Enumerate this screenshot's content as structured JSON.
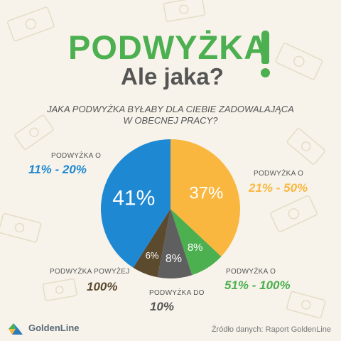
{
  "header": {
    "title": "PODWYŻKA",
    "subtitle": "Ale jaka?",
    "question_line1": "JAKA PODWYŻKA BYŁABY DLA CIEBIE ZADOWALAJĄCA",
    "question_line2": "W OBECNEJ PRACY?"
  },
  "labels": [
    {
      "id": "11-20",
      "small": "PODWYŻKA O",
      "range": "11% - 20%",
      "color": "#1e88d2"
    },
    {
      "id": "21-50",
      "small": "PODWYŻKA O",
      "range": "21% - 50%",
      "color": "#f9b73f"
    },
    {
      "id": "51-100",
      "small": "PODWYŻKA O",
      "range": "51% - 100%",
      "color": "#4caf50"
    },
    {
      "id": "do10",
      "small": "PODWYŻKA DO",
      "range": "10%",
      "color": "#555555"
    },
    {
      "id": "pow100",
      "small": "PODWYŻKA POWYŻEJ",
      "range": "100%",
      "color": "#5b4a2e"
    }
  ],
  "footer": {
    "source": "Źródło danych: Raport GoldenLine",
    "logo_text": "GoldenLine"
  },
  "chart_data": {
    "type": "pie",
    "title": "JAKA PODWYŻKA BYŁABY DLA CIEBIE ZADOWALAJĄCA W OBECNEJ PRACY?",
    "categories": [
      "21% - 50%",
      "51% - 100%",
      "do 10%",
      "powyżej 100%",
      "11% - 20%"
    ],
    "values": [
      37,
      8,
      8,
      6,
      41
    ],
    "value_labels": [
      "37%",
      "8%",
      "8%",
      "6%",
      "41%"
    ],
    "colors": [
      "#f9b73f",
      "#4caf50",
      "#5f5f5f",
      "#5b4a2e",
      "#1e88d2"
    ],
    "start": "12 o'clock, clockwise",
    "legend": "none (direct labels)"
  }
}
